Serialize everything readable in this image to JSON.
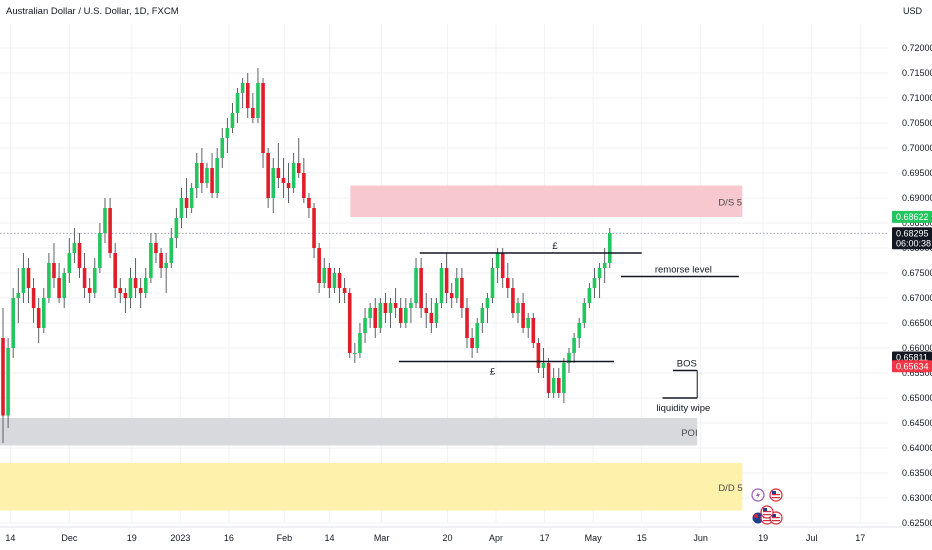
{
  "header": {
    "symbol_title": "Australian Dollar / U.S. Dollar, 1D, FXCM",
    "currency": "USD"
  },
  "chart_data": {
    "type": "candlestick",
    "title": "Australian Dollar / U.S. Dollar, 1D, FXCM",
    "ylabel": "USD",
    "ylim": [
      0.625,
      0.7235
    ],
    "y_ticks": [
      "0.72000",
      "0.71500",
      "0.71000",
      "0.70500",
      "0.70000",
      "0.69500",
      "0.69000",
      "0.68500",
      "0.68000",
      "0.67500",
      "0.67000",
      "0.66500",
      "0.66000",
      "0.65500",
      "0.65000",
      "0.64500",
      "0.64000",
      "0.63500",
      "0.63000",
      "0.62500"
    ],
    "x_ticks": [
      "14",
      "Dec",
      "19",
      "2023",
      "16",
      "Feb",
      "14",
      "Mar",
      "20",
      "Apr",
      "17",
      "May",
      "15",
      "Jun",
      "19",
      "Jul",
      "17"
    ],
    "x_range": [
      "2022-11-11",
      "2023-07-25"
    ],
    "ohlc_start": "2022-11-11",
    "ohlc_step_days": 1.47,
    "ohlc": [
      [
        0.662,
        0.668,
        0.641,
        0.6465
      ],
      [
        0.6465,
        0.662,
        0.644,
        0.66
      ],
      [
        0.66,
        0.672,
        0.658,
        0.67
      ],
      [
        0.67,
        0.676,
        0.665,
        0.671
      ],
      [
        0.671,
        0.679,
        0.669,
        0.676
      ],
      [
        0.676,
        0.678,
        0.669,
        0.672
      ],
      [
        0.672,
        0.674,
        0.665,
        0.668
      ],
      [
        0.668,
        0.67,
        0.661,
        0.664
      ],
      [
        0.664,
        0.672,
        0.663,
        0.67
      ],
      [
        0.67,
        0.679,
        0.669,
        0.677
      ],
      [
        0.677,
        0.681,
        0.672,
        0.674
      ],
      [
        0.674,
        0.677,
        0.669,
        0.67
      ],
      [
        0.67,
        0.676,
        0.668,
        0.675
      ],
      [
        0.675,
        0.682,
        0.673,
        0.679
      ],
      [
        0.679,
        0.684,
        0.677,
        0.681
      ],
      [
        0.681,
        0.683,
        0.674,
        0.676
      ],
      [
        0.676,
        0.679,
        0.67,
        0.672
      ],
      [
        0.672,
        0.674,
        0.669,
        0.671
      ],
      [
        0.671,
        0.678,
        0.67,
        0.676
      ],
      [
        0.676,
        0.685,
        0.675,
        0.683
      ],
      [
        0.683,
        0.69,
        0.681,
        0.688
      ],
      [
        0.688,
        0.69,
        0.678,
        0.679
      ],
      [
        0.679,
        0.681,
        0.67,
        0.672
      ],
      [
        0.672,
        0.674,
        0.669,
        0.671
      ],
      [
        0.671,
        0.672,
        0.667,
        0.67
      ],
      [
        0.67,
        0.676,
        0.668,
        0.674
      ],
      [
        0.674,
        0.678,
        0.67,
        0.672
      ],
      [
        0.672,
        0.674,
        0.668,
        0.671
      ],
      [
        0.671,
        0.676,
        0.67,
        0.674
      ],
      [
        0.674,
        0.683,
        0.673,
        0.681
      ],
      [
        0.681,
        0.683,
        0.677,
        0.679
      ],
      [
        0.679,
        0.68,
        0.674,
        0.676
      ],
      [
        0.676,
        0.679,
        0.671,
        0.677
      ],
      [
        0.677,
        0.684,
        0.676,
        0.682
      ],
      [
        0.682,
        0.688,
        0.68,
        0.686
      ],
      [
        0.686,
        0.692,
        0.684,
        0.69
      ],
      [
        0.69,
        0.694,
        0.686,
        0.688
      ],
      [
        0.688,
        0.693,
        0.687,
        0.692
      ],
      [
        0.692,
        0.699,
        0.69,
        0.697
      ],
      [
        0.697,
        0.7,
        0.691,
        0.693
      ],
      [
        0.693,
        0.697,
        0.692,
        0.696
      ],
      [
        0.696,
        0.699,
        0.69,
        0.691
      ],
      [
        0.691,
        0.7,
        0.69,
        0.698
      ],
      [
        0.698,
        0.704,
        0.696,
        0.702
      ],
      [
        0.702,
        0.706,
        0.699,
        0.704
      ],
      [
        0.704,
        0.709,
        0.703,
        0.707
      ],
      [
        0.707,
        0.712,
        0.705,
        0.711
      ],
      [
        0.711,
        0.714,
        0.708,
        0.713
      ],
      [
        0.713,
        0.715,
        0.706,
        0.708
      ],
      [
        0.708,
        0.711,
        0.705,
        0.706
      ],
      [
        0.706,
        0.716,
        0.705,
        0.713
      ],
      [
        0.713,
        0.714,
        0.696,
        0.699
      ],
      [
        0.699,
        0.7,
        0.688,
        0.69
      ],
      [
        0.69,
        0.698,
        0.687,
        0.696
      ],
      [
        0.696,
        0.701,
        0.692,
        0.694
      ],
      [
        0.694,
        0.698,
        0.69,
        0.693
      ],
      [
        0.693,
        0.697,
        0.689,
        0.692
      ],
      [
        0.692,
        0.699,
        0.691,
        0.697
      ],
      [
        0.697,
        0.702,
        0.694,
        0.695
      ],
      [
        0.695,
        0.698,
        0.689,
        0.69
      ],
      [
        0.69,
        0.691,
        0.686,
        0.688
      ],
      [
        0.688,
        0.689,
        0.678,
        0.68
      ],
      [
        0.68,
        0.681,
        0.671,
        0.673
      ],
      [
        0.673,
        0.678,
        0.672,
        0.676
      ],
      [
        0.676,
        0.677,
        0.67,
        0.672
      ],
      [
        0.672,
        0.676,
        0.671,
        0.675
      ],
      [
        0.675,
        0.676,
        0.669,
        0.672
      ],
      [
        0.672,
        0.674,
        0.669,
        0.671
      ],
      [
        0.671,
        0.672,
        0.658,
        0.659
      ],
      [
        0.659,
        0.661,
        0.657,
        0.659
      ],
      [
        0.659,
        0.665,
        0.658,
        0.663
      ],
      [
        0.663,
        0.668,
        0.661,
        0.666
      ],
      [
        0.666,
        0.669,
        0.664,
        0.668
      ],
      [
        0.668,
        0.67,
        0.662,
        0.664
      ],
      [
        0.664,
        0.67,
        0.663,
        0.669
      ],
      [
        0.669,
        0.671,
        0.665,
        0.667
      ],
      [
        0.667,
        0.67,
        0.664,
        0.669
      ],
      [
        0.669,
        0.672,
        0.666,
        0.668
      ],
      [
        0.668,
        0.67,
        0.664,
        0.665
      ],
      [
        0.665,
        0.67,
        0.664,
        0.668
      ],
      [
        0.668,
        0.67,
        0.665,
        0.669
      ],
      [
        0.669,
        0.678,
        0.668,
        0.676
      ],
      [
        0.676,
        0.678,
        0.666,
        0.668
      ],
      [
        0.668,
        0.671,
        0.664,
        0.667
      ],
      [
        0.667,
        0.67,
        0.663,
        0.665
      ],
      [
        0.665,
        0.67,
        0.664,
        0.669
      ],
      [
        0.669,
        0.677,
        0.668,
        0.676
      ],
      [
        0.676,
        0.679,
        0.669,
        0.671
      ],
      [
        0.671,
        0.673,
        0.668,
        0.67
      ],
      [
        0.67,
        0.676,
        0.669,
        0.674
      ],
      [
        0.674,
        0.676,
        0.666,
        0.668
      ],
      [
        0.668,
        0.67,
        0.66,
        0.662
      ],
      [
        0.662,
        0.664,
        0.658,
        0.66
      ],
      [
        0.66,
        0.666,
        0.659,
        0.665
      ],
      [
        0.665,
        0.669,
        0.663,
        0.668
      ],
      [
        0.668,
        0.671,
        0.665,
        0.67
      ],
      [
        0.67,
        0.678,
        0.669,
        0.676
      ],
      [
        0.676,
        0.68,
        0.673,
        0.679
      ],
      [
        0.679,
        0.68,
        0.672,
        0.674
      ],
      [
        0.674,
        0.677,
        0.67,
        0.672
      ],
      [
        0.672,
        0.674,
        0.666,
        0.667
      ],
      [
        0.667,
        0.67,
        0.665,
        0.669
      ],
      [
        0.669,
        0.671,
        0.663,
        0.664
      ],
      [
        0.664,
        0.667,
        0.662,
        0.666
      ],
      [
        0.666,
        0.667,
        0.66,
        0.661
      ],
      [
        0.661,
        0.662,
        0.655,
        0.656
      ],
      [
        0.656,
        0.66,
        0.654,
        0.657
      ],
      [
        0.657,
        0.658,
        0.65,
        0.651
      ],
      [
        0.651,
        0.656,
        0.65,
        0.654
      ],
      [
        0.654,
        0.656,
        0.65,
        0.651
      ],
      [
        0.651,
        0.658,
        0.649,
        0.657
      ],
      [
        0.657,
        0.66,
        0.655,
        0.659
      ],
      [
        0.659,
        0.663,
        0.657,
        0.662
      ],
      [
        0.662,
        0.666,
        0.66,
        0.665
      ],
      [
        0.665,
        0.67,
        0.664,
        0.669
      ],
      [
        0.669,
        0.673,
        0.668,
        0.672
      ],
      [
        0.672,
        0.676,
        0.67,
        0.674
      ],
      [
        0.674,
        0.677,
        0.67,
        0.676
      ],
      [
        0.676,
        0.68,
        0.673,
        0.677
      ],
      [
        0.677,
        0.684,
        0.676,
        0.683
      ]
    ],
    "zones": [
      {
        "label": "D/S  5",
        "type": "supply",
        "top": 0.6925,
        "bottom": 0.6862,
        "start": "2023-02-20",
        "end": "2023-06-13",
        "color": "#f7c6cb"
      },
      {
        "label": "POI",
        "type": "poi",
        "top": 0.646,
        "bottom": 0.6405,
        "start": "2022-11-11",
        "end": "2023-05-31",
        "color": "#d6d7da"
      },
      {
        "label": "D/D  5",
        "type": "demand",
        "top": 0.637,
        "bottom": 0.6275,
        "start": "2022-11-11",
        "end": "2023-06-13",
        "color": "#fdf0a6"
      }
    ],
    "annotations": [
      {
        "label": "£",
        "kind": "hline",
        "price": 0.679,
        "start": "2023-03-12",
        "end": "2023-05-15",
        "label_date": "2023-04-20"
      },
      {
        "label": "£",
        "kind": "hline",
        "price": 0.6573,
        "start": "2023-03-06",
        "end": "2023-05-07",
        "label_date": "2023-04-02"
      },
      {
        "label": "remorse level",
        "kind": "hline",
        "price": 0.6743,
        "start": "2023-05-09",
        "end": "2023-06-12",
        "label_date": "2023-05-27"
      },
      {
        "label": "BOS",
        "kind": "hline",
        "price": 0.6555,
        "start": "2023-05-24",
        "end": "2023-05-31",
        "label_date": "2023-05-28"
      },
      {
        "label": "liquidity wipe",
        "kind": "hline",
        "price": 0.65,
        "start": "2023-05-21",
        "end": "2023-05-31",
        "label_date": "2023-05-27"
      }
    ],
    "current_price_line": 0.68295,
    "price_tags": [
      {
        "value": "0.68622",
        "price": 0.68622,
        "bg": "#22c55e",
        "fg": "#ffffff"
      },
      {
        "value": "0.68295",
        "time": "06:00:38",
        "price": 0.68295,
        "bg": "#131722",
        "fg": "#ffffff"
      },
      {
        "value": "0.65811",
        "price": 0.65811,
        "bg": "#131722",
        "fg": "#ffffff"
      },
      {
        "value": "0.65634",
        "price": 0.65634,
        "bg": "#f23645",
        "fg": "#ffffff"
      }
    ],
    "colors": {
      "up": "#22c55e",
      "down": "#e11d2a",
      "grid": "#f0f2f5",
      "axis_text": "#131722"
    },
    "event_icons": [
      "lightning-icon",
      "flag-us-icon",
      "flag-au-icon",
      "flag-us-icon",
      "flag-us-icon",
      "flag-us-icon"
    ]
  }
}
